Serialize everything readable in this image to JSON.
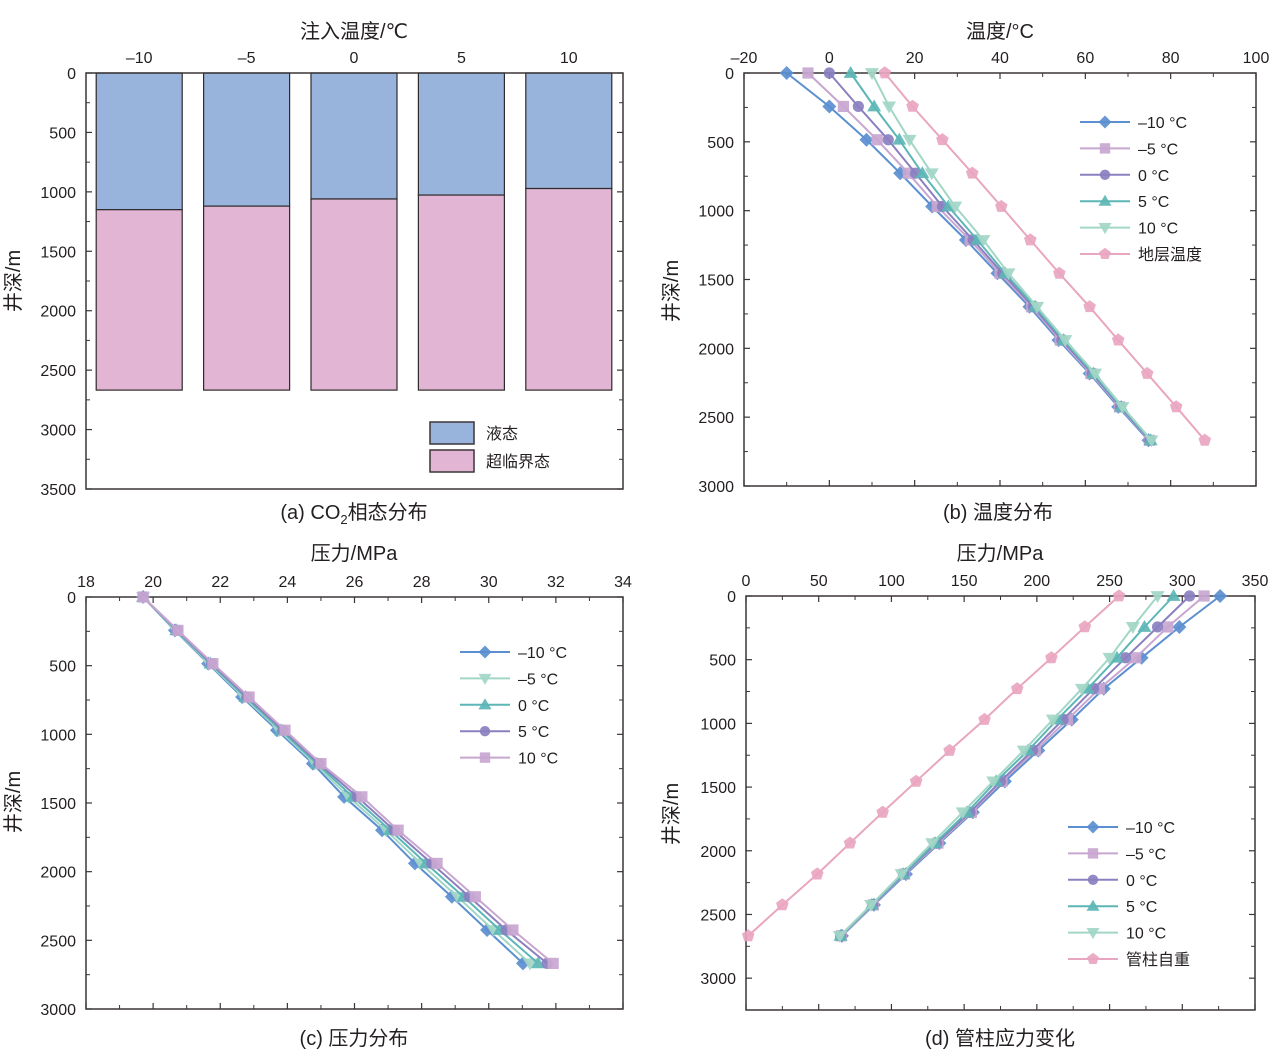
{
  "colors": {
    "axis": "#3b3536",
    "liquid": "#99b4dc",
    "supercritical": "#e1b5d3",
    "series_m10": "#5b8fd0",
    "series_m5": "#c8a6d0",
    "series_0": "#8a80c0",
    "series_5": "#5cb6b6",
    "series_10": "#a2d6c6",
    "formation": "#e9a6c0"
  },
  "chart_data": [
    {
      "id": "a",
      "type": "bar",
      "subtype": "stacked-vertical-depth",
      "caption": {
        "prefix": "(a) CO",
        "sub": "2",
        "suffix": "相态分布"
      },
      "xlabel": "注入温度/℃",
      "ylabel": "井深/m",
      "categories": [
        "–10",
        "–5",
        "0",
        "5",
        "10"
      ],
      "ylim": [
        0,
        3500
      ],
      "yticks": [
        "0",
        "500",
        "1000",
        "1500",
        "2000",
        "2500",
        "3000",
        "3500"
      ],
      "ytick_values": [
        0,
        500,
        1000,
        1500,
        2000,
        2500,
        3000,
        3500
      ],
      "series": [
        {
          "name": "液态",
          "color_key": "liquid",
          "from": [
            0,
            0,
            0,
            0,
            0
          ],
          "to": [
            1150,
            1120,
            1060,
            1027,
            972
          ]
        },
        {
          "name": "超临界态",
          "color_key": "supercritical",
          "from": [
            1150,
            1120,
            1060,
            1027,
            972
          ],
          "to": [
            2668,
            2668,
            2668,
            2668,
            2668
          ]
        }
      ],
      "legend": [
        "液态",
        "超临界态"
      ],
      "legend_position": "bottom-right"
    },
    {
      "id": "b",
      "type": "line",
      "caption": "(b) 温度分布",
      "xlabel": "温度/°C",
      "ylabel": "井深/m",
      "xlim": [
        -20,
        100
      ],
      "ylim": [
        0,
        3000
      ],
      "xticks": [
        "–20",
        "0",
        "20",
        "40",
        "60",
        "80",
        "100"
      ],
      "xtick_values": [
        -20,
        0,
        20,
        40,
        60,
        80,
        100
      ],
      "yticks": [
        "0",
        "500",
        "1000",
        "1500",
        "2000",
        "2500",
        "3000"
      ],
      "ytick_values": [
        0,
        500,
        1000,
        1500,
        2000,
        2500,
        3000
      ],
      "depth": [
        0,
        243,
        485,
        728,
        970,
        1213,
        1455,
        1698,
        1940,
        2183,
        2425,
        2668
      ],
      "series": [
        {
          "name": "–10 °C",
          "marker": "diamond",
          "color_key": "series_m10",
          "values": [
            -10,
            0,
            8.7,
            16.6,
            24.1,
            32.0,
            39.4,
            46.9,
            53.7,
            61.0,
            67.7,
            74.8
          ]
        },
        {
          "name": "–5 °C",
          "marker": "square",
          "color_key": "series_m5",
          "values": [
            -5,
            3.3,
            11.2,
            18.5,
            25.3,
            33.0,
            40.0,
            47.4,
            54.1,
            61.3,
            68.0,
            75.0
          ]
        },
        {
          "name": "0 °C",
          "marker": "circle",
          "color_key": "series_0",
          "values": [
            0,
            6.8,
            13.8,
            20.2,
            26.5,
            33.7,
            40.6,
            47.8,
            54.5,
            61.6,
            68.2,
            75.1
          ]
        },
        {
          "name": "5 °C",
          "marker": "triangle-up",
          "color_key": "series_5",
          "values": [
            5,
            10.5,
            16.4,
            21.8,
            27.9,
            34.7,
            41.2,
            48.2,
            54.9,
            61.9,
            68.4,
            75.3
          ]
        },
        {
          "name": "10 °C",
          "marker": "triangle-down",
          "color_key": "series_10",
          "values": [
            10,
            14.0,
            18.8,
            24.0,
            29.5,
            36.1,
            42.0,
            48.7,
            55.3,
            62.3,
            68.7,
            75.5
          ]
        },
        {
          "name": "地层温度",
          "marker": "pentagon",
          "color_key": "formation",
          "values": [
            13,
            19.5,
            26.5,
            33.5,
            40.3,
            47.1,
            53.9,
            61.0,
            67.7,
            74.5,
            81.3,
            88.0
          ]
        }
      ],
      "legend_position": "top-right"
    },
    {
      "id": "c",
      "type": "line",
      "caption": "(c) 压力分布",
      "xlabel": "压力/MPa",
      "ylabel": "井深/m",
      "xlim": [
        18,
        34
      ],
      "ylim": [
        0,
        3000
      ],
      "xticks": [
        "18",
        "20",
        "22",
        "24",
        "26",
        "28",
        "30",
        "32",
        "34"
      ],
      "xtick_values": [
        18,
        20,
        22,
        24,
        26,
        28,
        30,
        32,
        34
      ],
      "yticks": [
        "0",
        "500",
        "1000",
        "1500",
        "2000",
        "2500",
        "3000"
      ],
      "ytick_values": [
        0,
        500,
        1000,
        1500,
        2000,
        2500,
        3000
      ],
      "depth": [
        0,
        243,
        485,
        728,
        970,
        1213,
        1455,
        1698,
        1940,
        2183,
        2425,
        2668
      ],
      "series": [
        {
          "name": "–10 °C",
          "marker": "diamond",
          "color_key": "series_m10",
          "values": [
            19.7,
            20.65,
            21.64,
            22.65,
            23.69,
            24.76,
            25.69,
            26.82,
            27.8,
            28.9,
            29.95,
            31.02
          ]
        },
        {
          "name": "–5 °C",
          "marker": "triangle-down",
          "color_key": "series_10",
          "values": [
            19.7,
            20.67,
            21.67,
            22.7,
            23.75,
            24.82,
            25.82,
            26.94,
            27.97,
            29.07,
            30.14,
            31.23
          ]
        },
        {
          "name": "0 °C",
          "marker": "triangle-up",
          "color_key": "series_5",
          "values": [
            19.7,
            20.69,
            21.71,
            22.75,
            23.81,
            24.88,
            25.95,
            27.06,
            28.13,
            29.25,
            30.33,
            31.47
          ]
        },
        {
          "name": "5 °C",
          "marker": "circle",
          "color_key": "series_0",
          "values": [
            19.7,
            20.72,
            21.74,
            22.8,
            23.87,
            24.94,
            26.08,
            27.18,
            28.3,
            29.42,
            30.52,
            31.74
          ]
        },
        {
          "name": "10 °C",
          "marker": "square",
          "color_key": "series_m5",
          "values": [
            19.7,
            20.74,
            21.78,
            22.86,
            23.93,
            25.0,
            26.22,
            27.3,
            28.46,
            29.6,
            30.72,
            31.92
          ]
        }
      ],
      "legend_position": "top-right"
    },
    {
      "id": "d",
      "type": "line",
      "caption": "(d) 管柱应力变化",
      "xlabel": "压力/MPa",
      "ylabel": "井深/m",
      "xlim": [
        0,
        350
      ],
      "ylim": [
        0,
        3250
      ],
      "xticks": [
        "0",
        "50",
        "100",
        "150",
        "200",
        "250",
        "300",
        "350"
      ],
      "xtick_values": [
        0,
        50,
        100,
        150,
        200,
        250,
        300,
        350
      ],
      "yticks": [
        "0",
        "500",
        "1000",
        "1500",
        "2000",
        "2500",
        "3000"
      ],
      "ytick_values": [
        0,
        500,
        1000,
        1500,
        2000,
        2500,
        3000
      ],
      "depth": [
        0,
        243,
        485,
        728,
        970,
        1213,
        1455,
        1698,
        1940,
        2183,
        2425,
        2668
      ],
      "series": [
        {
          "name": "–10 °C",
          "marker": "diamond",
          "color_key": "series_m10",
          "values": [
            326,
            298,
            272,
            246,
            224,
            201,
            178,
            156,
            133,
            110,
            88,
            66
          ]
        },
        {
          "name": "–5 °C",
          "marker": "square",
          "color_key": "series_m5",
          "values": [
            315,
            290,
            268,
            243,
            221,
            199,
            176,
            155,
            132,
            109,
            87.5,
            65.5
          ]
        },
        {
          "name": "0 °C",
          "marker": "circle",
          "color_key": "series_0",
          "values": [
            305,
            283,
            261,
            239,
            218,
            197,
            175,
            154,
            131,
            108.5,
            87,
            65
          ]
        },
        {
          "name": "5 °C",
          "marker": "triangle-up",
          "color_key": "series_5",
          "values": [
            294,
            274,
            255,
            235,
            214,
            194,
            172,
            152,
            130,
            108,
            86.5,
            65
          ]
        },
        {
          "name": "10 °C",
          "marker": "triangle-down",
          "color_key": "series_10",
          "values": [
            283,
            266,
            250,
            231,
            211,
            191,
            170,
            149,
            128,
            107,
            86,
            64.5
          ]
        },
        {
          "name": "管柱自重",
          "marker": "pentagon",
          "color_key": "formation",
          "values": [
            256.5,
            233,
            210,
            186.5,
            164,
            140,
            117,
            94,
            71.5,
            49,
            25,
            1.5
          ]
        }
      ],
      "legend_position": "bottom-right"
    }
  ]
}
